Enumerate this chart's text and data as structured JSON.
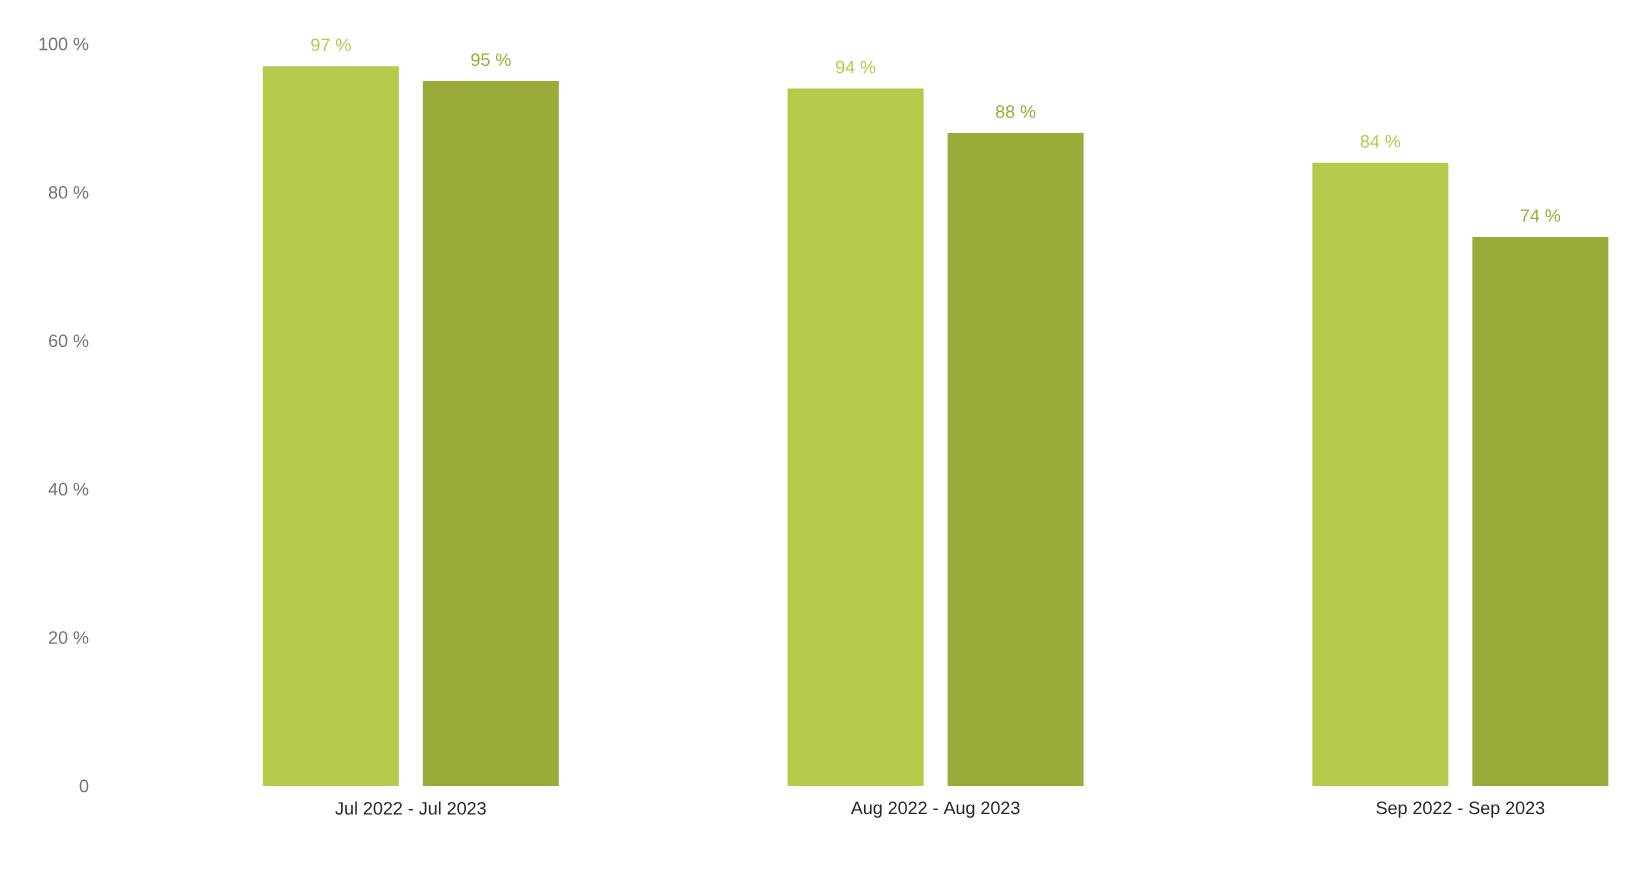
{
  "chart_data": {
    "type": "bar",
    "categories": [
      "Jul 2022 - Jul 2023",
      "Aug 2022 - Aug 2023",
      "Sep 2022 - Sep 2023"
    ],
    "series": [
      {
        "color": "#b5c94a",
        "values": [
          97,
          94,
          84
        ],
        "value_labels": [
          "97 %",
          "94 %",
          "84 %"
        ]
      },
      {
        "color": "#9aab3a",
        "values": [
          95,
          88,
          74
        ],
        "value_labels": [
          "95 %",
          "88 %",
          "74 %"
        ]
      }
    ],
    "ylim": [
      0,
      100
    ],
    "yticks": [
      {
        "value": 0,
        "label": "0"
      },
      {
        "value": 20,
        "label": "20 %"
      },
      {
        "value": 40,
        "label": "40 %"
      },
      {
        "value": 60,
        "label": "60 %"
      },
      {
        "value": 80,
        "label": "80 %"
      },
      {
        "value": 100,
        "label": "100 %"
      }
    ]
  }
}
